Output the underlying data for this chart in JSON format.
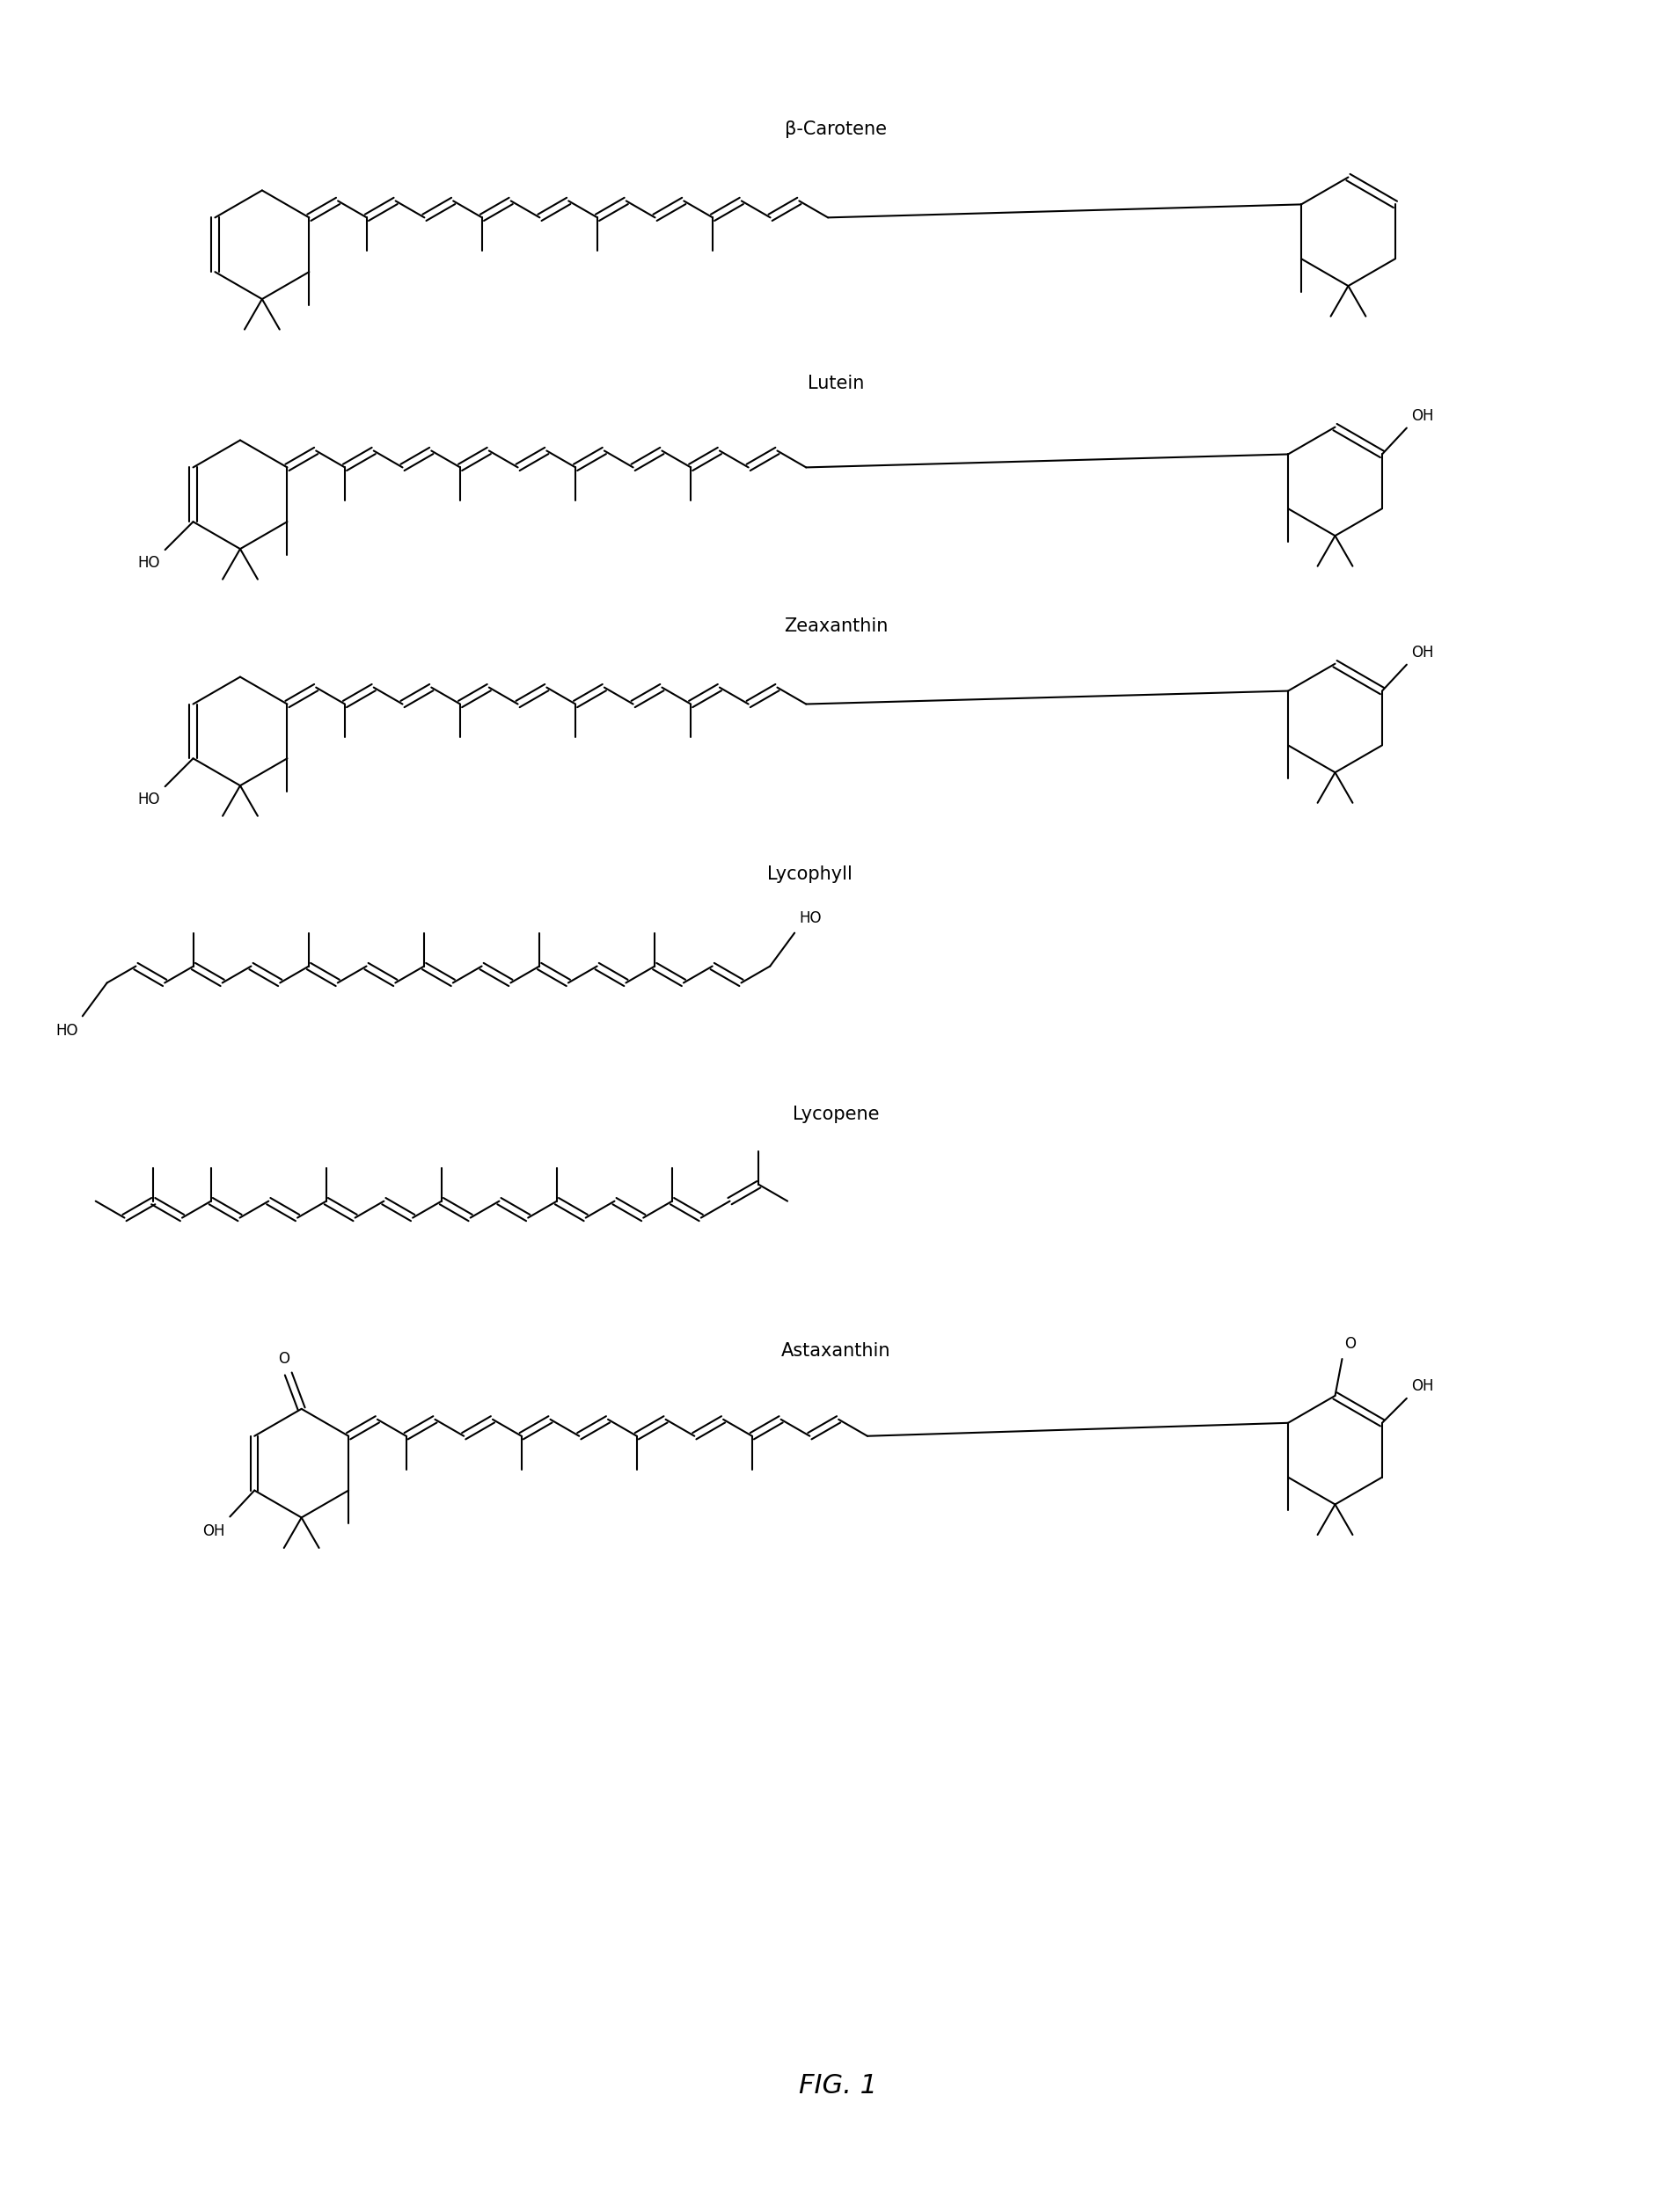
{
  "title": "FIG. 1",
  "background_color": "#ffffff",
  "line_color": "#000000",
  "text_color": "#000000",
  "fig_width": 19.06,
  "fig_height": 25.15,
  "molecules": [
    {
      "name": "β-Carotene"
    },
    {
      "name": "Lutein"
    },
    {
      "name": "Zeaxanthin"
    },
    {
      "name": "Lycophyll"
    },
    {
      "name": "Lycopene"
    },
    {
      "name": "Astaxanthin"
    }
  ]
}
